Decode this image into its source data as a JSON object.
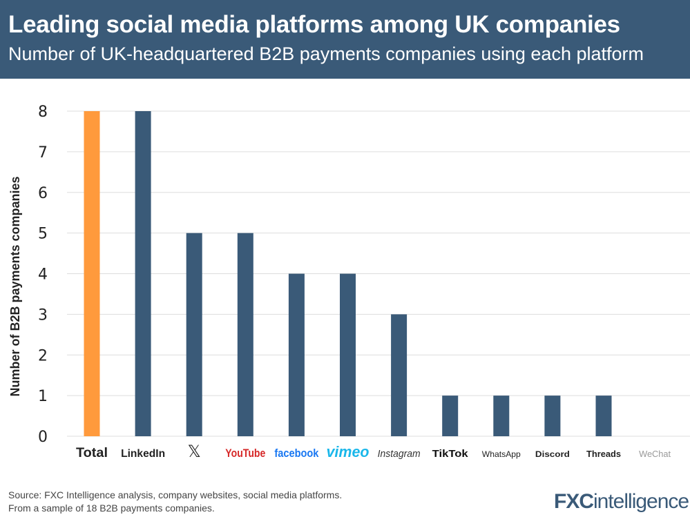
{
  "header": {
    "title": "Leading social media platforms among UK companies",
    "subtitle": "Number of UK-headquartered B2B payments companies using each platform"
  },
  "chart_data": {
    "type": "bar",
    "categories": [
      "Total",
      "LinkedIn",
      "X",
      "YouTube",
      "facebook",
      "vimeo",
      "Instagram",
      "TikTok",
      "WhatsApp",
      "Discord",
      "Threads",
      "WeChat"
    ],
    "values": [
      8,
      8,
      5,
      5,
      4,
      4,
      3,
      1,
      1,
      1,
      1,
      0
    ],
    "ylabel": "Number of B2B payments companies",
    "ylim": [
      0,
      8
    ],
    "yticks": [
      0,
      1,
      2,
      3,
      4,
      5,
      6,
      7,
      8
    ],
    "grid": true,
    "colors": {
      "highlight": "#ff9a3c",
      "bar": "#3a5a78",
      "grid": "#dddddd"
    }
  },
  "footer": {
    "source": "Source: FXC Intelligence analysis, company websites, social media platforms.",
    "note": "From a sample of 18 B2B payments companies.",
    "logo": "FXCintelligence"
  }
}
